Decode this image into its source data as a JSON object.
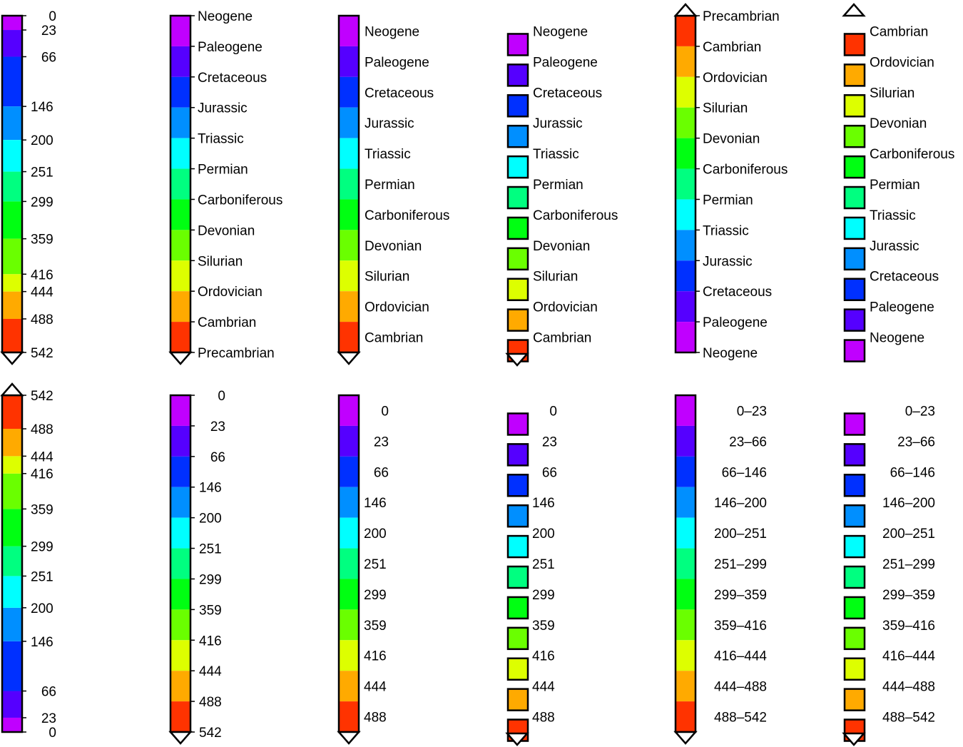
{
  "colors": {
    "neogene": "#c000ff",
    "paleogene": "#5500ff",
    "cretaceous": "#0030ff",
    "jurassic": "#008fff",
    "triassic": "#00ffff",
    "permian": "#00ff80",
    "carboniferous": "#00ff12",
    "devonian": "#6aff00",
    "silurian": "#ddff00",
    "ordovician": "#ffaa00",
    "cambrian": "#ff3300",
    "outline": "#000000"
  },
  "scale": {
    "breakpoints": [
      0,
      23,
      66,
      146,
      200,
      251,
      299,
      359,
      416,
      444,
      488,
      542
    ]
  },
  "periods": [
    "Neogene",
    "Paleogene",
    "Cretaceous",
    "Jurassic",
    "Triassic",
    "Permian",
    "Carboniferous",
    "Devonian",
    "Silurian",
    "Ordovician",
    "Cambrian"
  ],
  "period_keys": [
    "neogene",
    "paleogene",
    "cretaceous",
    "jurassic",
    "triassic",
    "permian",
    "carboniferous",
    "devonian",
    "silurian",
    "ordovician",
    "cambrian"
  ],
  "precambrian_label": "Precambrian",
  "range_labels": [
    "0–23",
    "23–66",
    "66–146",
    "146–200",
    "200–251",
    "251–299",
    "299–359",
    "359–416",
    "416–444",
    "444–488",
    "488–542"
  ],
  "panels": [
    {
      "id": "r1c1",
      "mode": "continuous",
      "flip": false,
      "labels": "boundaries",
      "triangle": "bottom"
    },
    {
      "id": "r1c2",
      "mode": "equal",
      "flip": false,
      "labels": "names-precambrian",
      "triangle": "bottom"
    },
    {
      "id": "r1c3",
      "mode": "equal",
      "flip": false,
      "labels": "names",
      "triangle": "bottom"
    },
    {
      "id": "r1c4",
      "mode": "boxes",
      "flip": false,
      "labels": "names",
      "triangle": "bottom"
    },
    {
      "id": "r1c5",
      "mode": "equal",
      "flip": true,
      "labels": "names-precambrian",
      "triangle": "top"
    },
    {
      "id": "r1c6",
      "mode": "boxes",
      "flip": true,
      "labels": "names",
      "triangle": "top"
    },
    {
      "id": "r2c1",
      "mode": "continuous",
      "flip": true,
      "labels": "boundaries",
      "triangle": "top"
    },
    {
      "id": "r2c2",
      "mode": "equal",
      "flip": false,
      "labels": "boundaries-equal",
      "triangle": "bottom"
    },
    {
      "id": "r2c3",
      "mode": "equal",
      "flip": false,
      "labels": "starts",
      "triangle": "bottom"
    },
    {
      "id": "r2c4",
      "mode": "boxes",
      "flip": false,
      "labels": "starts",
      "triangle": "bottom"
    },
    {
      "id": "r2c5",
      "mode": "equal",
      "flip": false,
      "labels": "ranges",
      "triangle": "bottom"
    },
    {
      "id": "r2c6",
      "mode": "boxes",
      "flip": false,
      "labels": "ranges",
      "triangle": "bottom"
    }
  ]
}
